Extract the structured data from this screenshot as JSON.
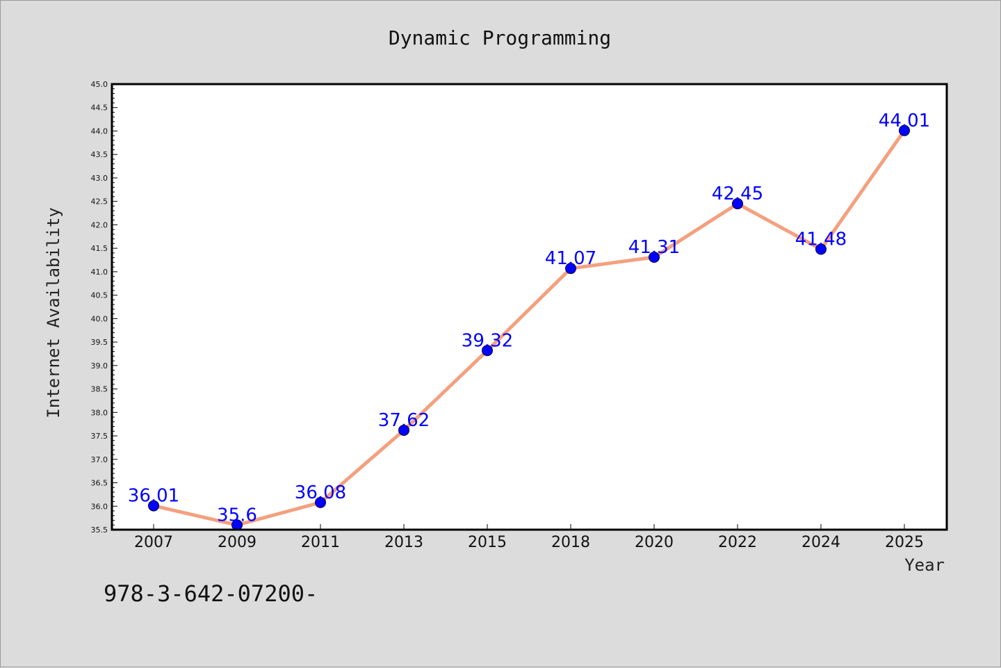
{
  "chart_data": {
    "type": "line",
    "title": "Dynamic Programming",
    "xlabel": "Year",
    "ylabel": "Internet Availability",
    "categories": [
      "2007",
      "2009",
      "2011",
      "2013",
      "2015",
      "2018",
      "2020",
      "2022",
      "2024",
      "2025"
    ],
    "series": [
      {
        "values": [
          36.01,
          35.6,
          36.08,
          37.62,
          39.32,
          41.07,
          41.31,
          42.45,
          41.48,
          44.01
        ],
        "labels": [
          "36.01",
          "35.6",
          "36.08",
          "37.62",
          "39.32",
          "41.07",
          "41.31",
          "42.45",
          "41.48",
          "44.01"
        ]
      }
    ],
    "ylim": [
      35.5,
      45.0
    ],
    "yticks": [
      "35.5",
      "36.0",
      "36.5",
      "37.0",
      "37.5",
      "38.0",
      "38.5",
      "39.0",
      "39.5",
      "40.0",
      "40.5",
      "41.0",
      "41.5",
      "42.0",
      "42.5",
      "43.0",
      "43.5",
      "44.0",
      "44.5",
      "45.0"
    ],
    "grid": false,
    "line_color": "#f4a07e",
    "marker_color": "#0000ff",
    "label_color": "#0000ff",
    "annotation": "978-3-642-07200-"
  }
}
